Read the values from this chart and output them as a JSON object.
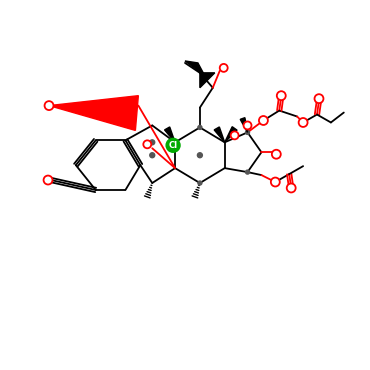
{
  "bg_color": "#ffffff",
  "black": "#000000",
  "red": "#ff0000",
  "green": "#00aa00",
  "gray": "#555555",
  "figsize": [
    3.7,
    3.7
  ],
  "dpi": 100
}
